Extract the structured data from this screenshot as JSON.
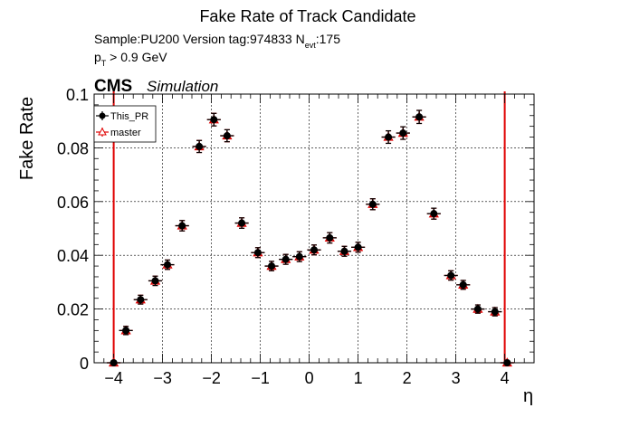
{
  "chart_data": {
    "type": "scatter",
    "title": "Fake Rate of Track Candidate",
    "info_lines": {
      "sample": "Sample:PU200   Version tag:974833  N",
      "nevt_sub": "evt",
      "nevt_val": ":175",
      "pt_prefix": "p",
      "pt_sub": "T",
      "pt_suffix": " > 0.9 GeV"
    },
    "cms_label": "CMS",
    "simulation_label": "Simulation",
    "xlabel": "η",
    "ylabel": "Fake Rate",
    "xlim": [
      -4.4,
      4.6
    ],
    "ylim": [
      0,
      0.1
    ],
    "xticks": [
      -4,
      -3,
      -2,
      -1,
      0,
      1,
      2,
      3,
      4
    ],
    "xtick_labels": [
      "−4",
      "−3",
      "−2",
      "−1",
      "0",
      "1",
      "2",
      "3",
      "4"
    ],
    "yticks": [
      0,
      0.02,
      0.04,
      0.06,
      0.08,
      0.1
    ],
    "ytick_labels": [
      "0",
      "0.02",
      "0.04",
      "0.06",
      "0.08",
      "0.1"
    ],
    "grid": true,
    "legend_position": "top-left",
    "reference_lines_x": [
      -4,
      4
    ],
    "series": [
      {
        "name": "This_PR",
        "marker": "filled-circle",
        "color": "#000000",
        "x": [
          -4.0,
          -3.75,
          -3.45,
          -3.15,
          -2.9,
          -2.6,
          -2.25,
          -1.95,
          -1.68,
          -1.38,
          -1.05,
          -0.77,
          -0.48,
          -0.2,
          0.1,
          0.42,
          0.72,
          1.0,
          1.3,
          1.62,
          1.92,
          2.25,
          2.55,
          2.9,
          3.15,
          3.45,
          3.8,
          4.05
        ],
        "y": [
          0.0,
          0.012,
          0.0235,
          0.0305,
          0.0365,
          0.051,
          0.0805,
          0.0905,
          0.0845,
          0.052,
          0.041,
          0.036,
          0.0385,
          0.0395,
          0.042,
          0.0465,
          0.0415,
          0.043,
          0.059,
          0.084,
          0.0855,
          0.0915,
          0.0555,
          0.0325,
          0.029,
          0.02,
          0.019,
          0.0
        ]
      },
      {
        "name": "master",
        "marker": "open-triangle",
        "color": "#e00000",
        "x": [
          -4.0,
          -3.75,
          -3.45,
          -3.15,
          -2.9,
          -2.6,
          -2.25,
          -1.95,
          -1.68,
          -1.38,
          -1.05,
          -0.77,
          -0.48,
          -0.2,
          0.1,
          0.42,
          0.72,
          1.0,
          1.3,
          1.62,
          1.92,
          2.25,
          2.55,
          2.9,
          3.15,
          3.45,
          3.8,
          4.05
        ],
        "y": [
          0.0,
          0.012,
          0.0235,
          0.0305,
          0.0365,
          0.051,
          0.0805,
          0.0905,
          0.0845,
          0.052,
          0.041,
          0.036,
          0.0385,
          0.0395,
          0.042,
          0.0465,
          0.0415,
          0.043,
          0.059,
          0.084,
          0.0855,
          0.0915,
          0.0555,
          0.0325,
          0.029,
          0.02,
          0.019,
          0.0
        ]
      }
    ],
    "y_error": [
      0.0,
      0.0012,
      0.0013,
      0.0014,
      0.0014,
      0.0016,
      0.0019,
      0.002,
      0.0019,
      0.0016,
      0.0015,
      0.0014,
      0.0015,
      0.0015,
      0.0015,
      0.0016,
      0.0015,
      0.0015,
      0.0017,
      0.002,
      0.002,
      0.0021,
      0.0017,
      0.0014,
      0.0013,
      0.0012,
      0.0012,
      0.0
    ],
    "x_halfwidth": 0.14
  }
}
